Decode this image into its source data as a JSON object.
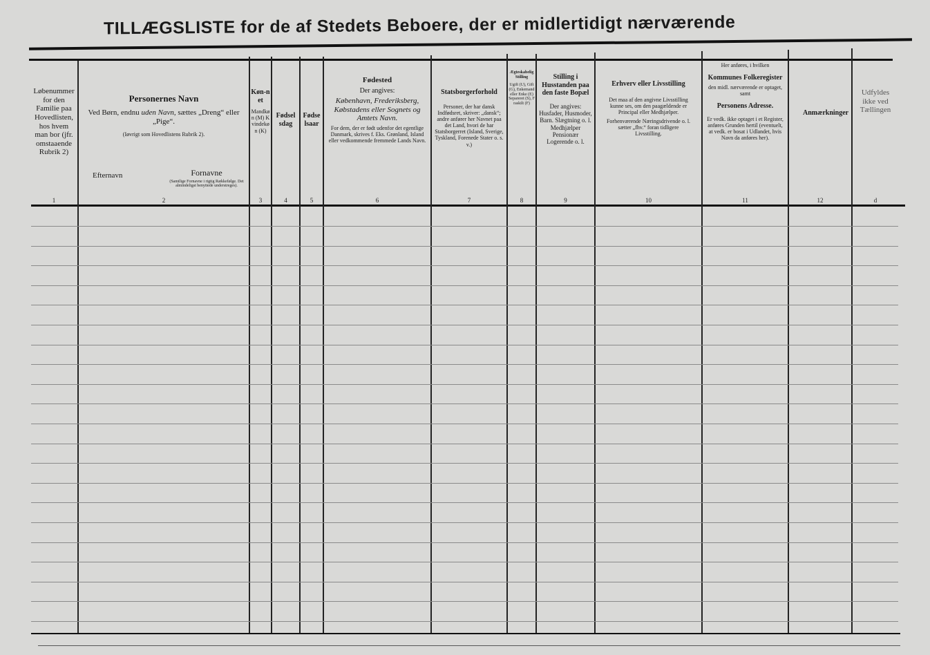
{
  "title": "TILLÆGSLISTE for de af Stedets Beboere, der er midlertidigt nærværende",
  "columns": [
    {
      "num": "1",
      "text": "Løbenummer for den Familie paa Hovedlisten, hos hvem man bor (jfr. omstaaende Rubrik 2)"
    },
    {
      "num": "2",
      "heading": "Personernes Navn",
      "text1": "Ved Børn, endnu",
      "text1_italic": "uden Navn,",
      "text1_end": "sættes „Dreng“ eller „Pige“.",
      "note": "(Iøvrigt som Hovedlistens Rubrik 2).",
      "sub_left": "Efternavn",
      "sub_right": "Fornavne",
      "sub_right_note": "(Samtlige Fornavne i rigtig Rækkefølge. Det almindeligst benyttede understreges)."
    },
    {
      "num": "3",
      "heading": "Køn-net",
      "text": "Mandkøn (M) Kvindekøn (K)"
    },
    {
      "num": "4",
      "heading": "Fødselsdag"
    },
    {
      "num": "5",
      "heading": "Fødselsaar"
    },
    {
      "num": "6",
      "heading": "Fødested",
      "text1": "Der angives:",
      "text2": "København, Frederiksberg, Købstadens eller Sognets og Amtets Navn.",
      "text3": "For dem, der er født udenfor det egentlige Danmark, skrives f. Eks. Grønland, Island eller vedkommende fremmede Lands Navn."
    },
    {
      "num": "7",
      "heading": "Statsborgerforhold",
      "text": "Personer, der har dansk Indfødsret, skriver: „dansk“; andre anfører her Navnet paa det Land, hvori de har Statsborgerret (Island, Sverige, Tyskland, Forenede Stater o. s. v.)"
    },
    {
      "num": "8",
      "heading": "Ægteskabelig Stilling",
      "text": "Ugift (U), Gift (G), Enkemand eller Enke (E) Separeret (S), Fraskilt (F)"
    },
    {
      "num": "9",
      "heading": "Stilling i Husstanden paa den faste Bopæl",
      "text": "Der angives: Husfader, Husmoder, Barn. Slægtning o. l. Medhjælper Pensionær Logerende o. l."
    },
    {
      "num": "10",
      "heading": "Erhverv eller Livsstilling",
      "text1": "Det maa af den angivne Livsstilling kunne ses, om den paagældende er Principal eller Medhjælper.",
      "text2": "Forhenværende Næringsdrivende o. l. sætter „fhv.“ foran tidligere Livsstilling."
    },
    {
      "num": "11",
      "pre": "Her anføres, i hvilken",
      "heading": "Kommunes Folkeregister",
      "text1": "den midl. nærværende er optaget, samt",
      "heading2": "Personens Adresse.",
      "text2": "Er vedk. ikke optaget i et Register, anføres Grunden hertil (eventuelt, at vedk. er bosat i Udlandet, hvis Navn da anføres her)."
    },
    {
      "num": "12",
      "heading": "Anmærkninger"
    },
    {
      "num": "d",
      "text": "Udfyldes ikke ved Tællingen"
    }
  ]
}
